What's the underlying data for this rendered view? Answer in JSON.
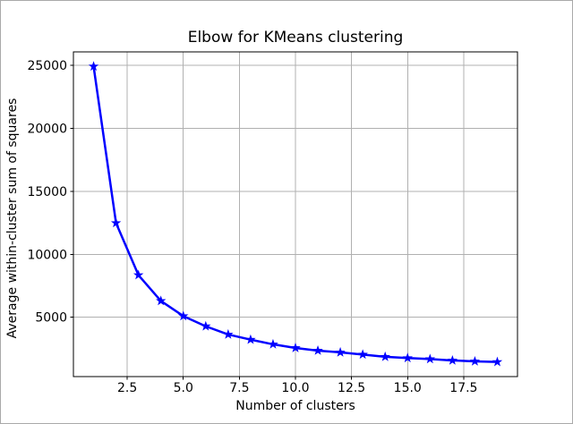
{
  "figure": {
    "background": "#ffffff",
    "border_color": "#a9a9a9"
  },
  "chart_data": {
    "type": "line",
    "title": "Elbow for KMeans clustering",
    "xlabel": "Number of clusters",
    "ylabel": "Average within-cluster sum of squares",
    "x": [
      1,
      2,
      3,
      4,
      5,
      6,
      7,
      8,
      9,
      10,
      11,
      12,
      13,
      14,
      15,
      16,
      17,
      18,
      19
    ],
    "y": [
      24900,
      12480,
      8350,
      6300,
      5100,
      4290,
      3640,
      3230,
      2860,
      2570,
      2360,
      2220,
      2050,
      1870,
      1770,
      1690,
      1580,
      1510,
      1460
    ],
    "xlim": [
      0.1,
      19.9
    ],
    "ylim": [
      300,
      26050
    ],
    "xticks": [
      2.5,
      5.0,
      7.5,
      10.0,
      12.5,
      15.0,
      17.5
    ],
    "xtick_labels": [
      "2.5",
      "5.0",
      "7.5",
      "10.0",
      "12.5",
      "15.0",
      "17.5"
    ],
    "yticks": [
      5000,
      10000,
      15000,
      20000,
      25000
    ],
    "ytick_labels": [
      "5000",
      "10000",
      "15000",
      "20000",
      "25000"
    ],
    "grid": true,
    "legend": false,
    "line_color": "#0000ff",
    "marker": "star",
    "grid_color": "#b0b0b0",
    "spine_color": "#000000",
    "tick_color": "#000000"
  }
}
